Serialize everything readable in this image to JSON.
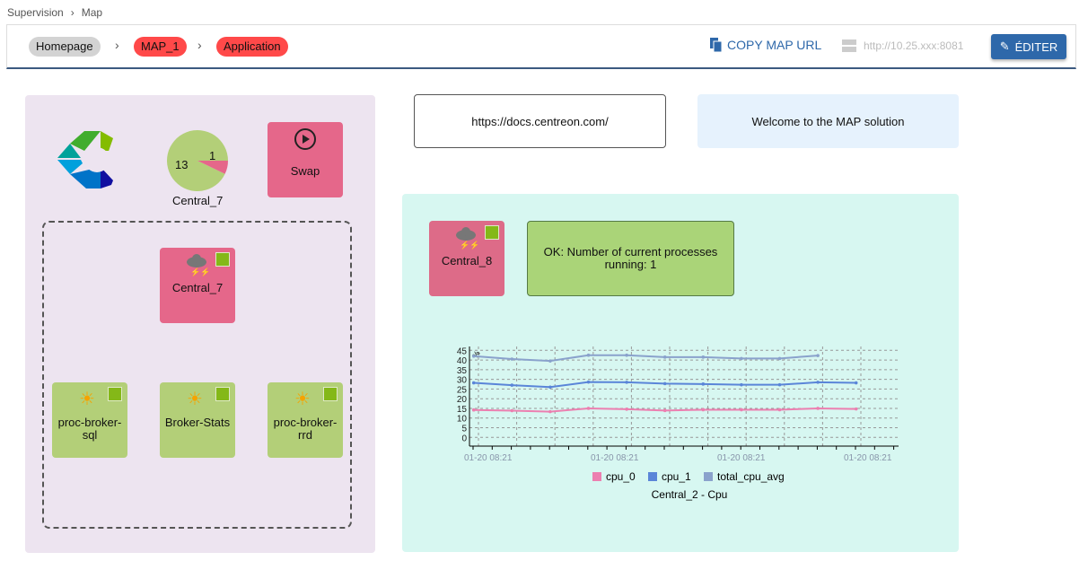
{
  "breadcrumb": [
    "Supervision",
    "Map"
  ],
  "toolbar": {
    "crumbs": [
      {
        "label": "Homepage",
        "color": "#d3d3d3"
      },
      {
        "label": "MAP_1",
        "color": "#ff4949"
      },
      {
        "label": "Application",
        "color": "#ff4949"
      }
    ],
    "copy_label": "COPY MAP URL",
    "server_url": "http://10.25.xxx:8081",
    "edit_label": "ÉDITER"
  },
  "left_panel": {
    "pie": {
      "label": "Central_7",
      "values": [
        {
          "value": 13,
          "color": "#b3cf78"
        },
        {
          "value": 1,
          "color": "#e5678a"
        }
      ]
    },
    "swap": {
      "label": "Swap",
      "icon": "play-circle-icon"
    },
    "group": {
      "host": {
        "label": "Central_7",
        "icon": "cloud-storm-icon"
      },
      "services": [
        {
          "label": "proc-broker-sql",
          "icon": "sun-icon"
        },
        {
          "label": "Broker-Stats",
          "icon": "sun-icon"
        },
        {
          "label": "proc-broker-rrd",
          "icon": "sun-icon"
        }
      ]
    }
  },
  "link_box": "https://docs.centreon.com/",
  "welcome_box": "Welcome to the MAP solution",
  "right_panel": {
    "host": {
      "label": "Central_8",
      "icon": "cloud-storm-icon"
    },
    "status": "OK: Number of current processes running: 1"
  },
  "chart_data": {
    "type": "line",
    "title": "Central_2 - Cpu",
    "unit": "%",
    "ylim": [
      -4.5,
      47
    ],
    "yticks": [
      0,
      5,
      10,
      15,
      20,
      25,
      30,
      35,
      40,
      45
    ],
    "xtick_labels": [
      "01-20 08:21",
      "01-20 08:21",
      "01-20 08:21",
      "01-20 08:21"
    ],
    "grid": true,
    "legend": "bottom",
    "series": [
      {
        "name": "cpu_0",
        "color": "#ec7fb0",
        "values": [
          14.2,
          13.8,
          13.3,
          15,
          14.6,
          13.9,
          14.3,
          14.3,
          14.3,
          15,
          14.7
        ]
      },
      {
        "name": "cpu_1",
        "color": "#5a85d8",
        "values": [
          28.2,
          27,
          26,
          28.6,
          28.5,
          27.8,
          27.6,
          27.2,
          27.2,
          28.5,
          28.2
        ]
      },
      {
        "name": "total_cpu_avg",
        "color": "#8aa2cc",
        "values": [
          42,
          40.5,
          39.5,
          42.5,
          42.5,
          41.5,
          41.5,
          40.8,
          40.8,
          42.3
        ]
      }
    ]
  }
}
